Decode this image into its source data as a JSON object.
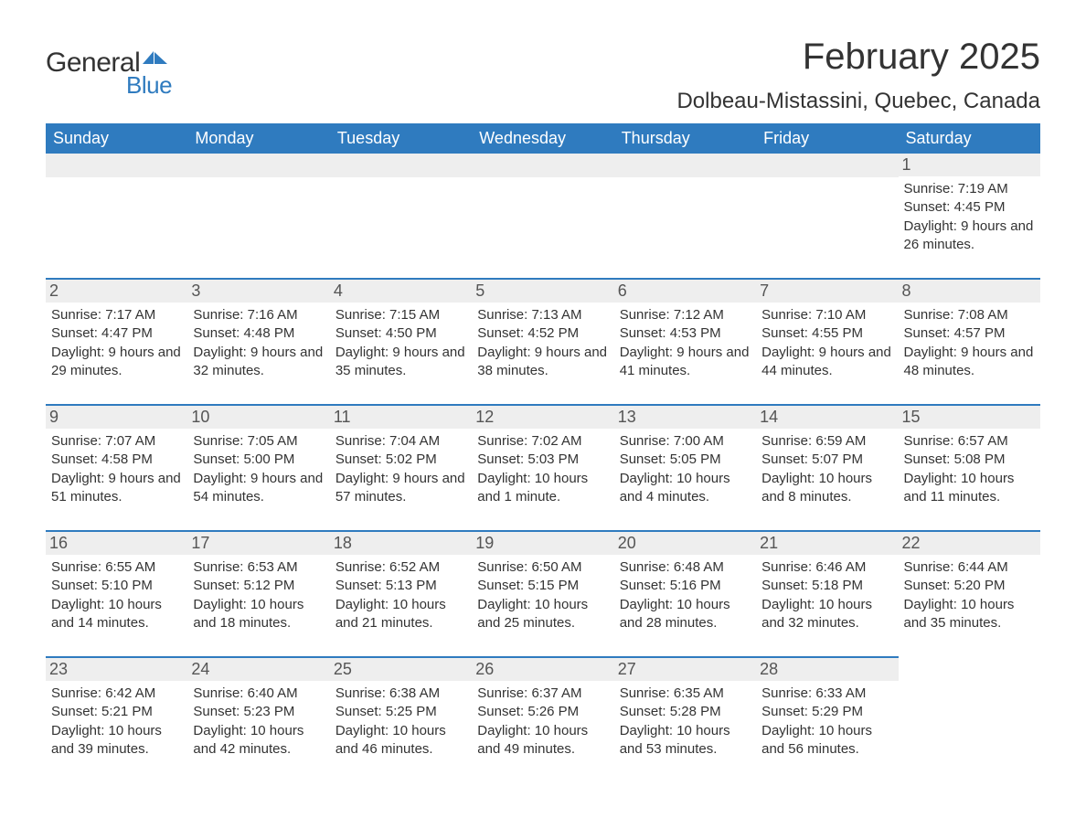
{
  "logo": {
    "word1": "General",
    "word2": "Blue",
    "color_general": "#333333",
    "color_blue": "#2f7bbf"
  },
  "title": "February 2025",
  "location": "Dolbeau-Mistassini, Quebec, Canada",
  "colors": {
    "header_bg": "#2f7bbf",
    "header_text": "#ffffff",
    "daynum_bg": "#eeeeee",
    "row_separator": "#2f7bbf",
    "body_text": "#333333",
    "background": "#ffffff"
  },
  "typography": {
    "title_fontsize": 40,
    "location_fontsize": 24,
    "weekday_fontsize": 18,
    "daynum_fontsize": 18,
    "body_fontsize": 15,
    "font_family": "Arial"
  },
  "weekdays": [
    "Sunday",
    "Monday",
    "Tuesday",
    "Wednesday",
    "Thursday",
    "Friday",
    "Saturday"
  ],
  "labels": {
    "sunrise": "Sunrise:",
    "sunset": "Sunset:",
    "daylight": "Daylight:"
  },
  "grid": [
    [
      {
        "blank": true
      },
      {
        "blank": true
      },
      {
        "blank": true
      },
      {
        "blank": true
      },
      {
        "blank": true
      },
      {
        "blank": true
      },
      {
        "day": 1,
        "sunrise": "7:19 AM",
        "sunset": "4:45 PM",
        "daylight": "9 hours and 26 minutes."
      }
    ],
    [
      {
        "day": 2,
        "sunrise": "7:17 AM",
        "sunset": "4:47 PM",
        "daylight": "9 hours and 29 minutes."
      },
      {
        "day": 3,
        "sunrise": "7:16 AM",
        "sunset": "4:48 PM",
        "daylight": "9 hours and 32 minutes."
      },
      {
        "day": 4,
        "sunrise": "7:15 AM",
        "sunset": "4:50 PM",
        "daylight": "9 hours and 35 minutes."
      },
      {
        "day": 5,
        "sunrise": "7:13 AM",
        "sunset": "4:52 PM",
        "daylight": "9 hours and 38 minutes."
      },
      {
        "day": 6,
        "sunrise": "7:12 AM",
        "sunset": "4:53 PM",
        "daylight": "9 hours and 41 minutes."
      },
      {
        "day": 7,
        "sunrise": "7:10 AM",
        "sunset": "4:55 PM",
        "daylight": "9 hours and 44 minutes."
      },
      {
        "day": 8,
        "sunrise": "7:08 AM",
        "sunset": "4:57 PM",
        "daylight": "9 hours and 48 minutes."
      }
    ],
    [
      {
        "day": 9,
        "sunrise": "7:07 AM",
        "sunset": "4:58 PM",
        "daylight": "9 hours and 51 minutes."
      },
      {
        "day": 10,
        "sunrise": "7:05 AM",
        "sunset": "5:00 PM",
        "daylight": "9 hours and 54 minutes."
      },
      {
        "day": 11,
        "sunrise": "7:04 AM",
        "sunset": "5:02 PM",
        "daylight": "9 hours and 57 minutes."
      },
      {
        "day": 12,
        "sunrise": "7:02 AM",
        "sunset": "5:03 PM",
        "daylight": "10 hours and 1 minute."
      },
      {
        "day": 13,
        "sunrise": "7:00 AM",
        "sunset": "5:05 PM",
        "daylight": "10 hours and 4 minutes."
      },
      {
        "day": 14,
        "sunrise": "6:59 AM",
        "sunset": "5:07 PM",
        "daylight": "10 hours and 8 minutes."
      },
      {
        "day": 15,
        "sunrise": "6:57 AM",
        "sunset": "5:08 PM",
        "daylight": "10 hours and 11 minutes."
      }
    ],
    [
      {
        "day": 16,
        "sunrise": "6:55 AM",
        "sunset": "5:10 PM",
        "daylight": "10 hours and 14 minutes."
      },
      {
        "day": 17,
        "sunrise": "6:53 AM",
        "sunset": "5:12 PM",
        "daylight": "10 hours and 18 minutes."
      },
      {
        "day": 18,
        "sunrise": "6:52 AM",
        "sunset": "5:13 PM",
        "daylight": "10 hours and 21 minutes."
      },
      {
        "day": 19,
        "sunrise": "6:50 AM",
        "sunset": "5:15 PM",
        "daylight": "10 hours and 25 minutes."
      },
      {
        "day": 20,
        "sunrise": "6:48 AM",
        "sunset": "5:16 PM",
        "daylight": "10 hours and 28 minutes."
      },
      {
        "day": 21,
        "sunrise": "6:46 AM",
        "sunset": "5:18 PM",
        "daylight": "10 hours and 32 minutes."
      },
      {
        "day": 22,
        "sunrise": "6:44 AM",
        "sunset": "5:20 PM",
        "daylight": "10 hours and 35 minutes."
      }
    ],
    [
      {
        "day": 23,
        "sunrise": "6:42 AM",
        "sunset": "5:21 PM",
        "daylight": "10 hours and 39 minutes."
      },
      {
        "day": 24,
        "sunrise": "6:40 AM",
        "sunset": "5:23 PM",
        "daylight": "10 hours and 42 minutes."
      },
      {
        "day": 25,
        "sunrise": "6:38 AM",
        "sunset": "5:25 PM",
        "daylight": "10 hours and 46 minutes."
      },
      {
        "day": 26,
        "sunrise": "6:37 AM",
        "sunset": "5:26 PM",
        "daylight": "10 hours and 49 minutes."
      },
      {
        "day": 27,
        "sunrise": "6:35 AM",
        "sunset": "5:28 PM",
        "daylight": "10 hours and 53 minutes."
      },
      {
        "day": 28,
        "sunrise": "6:33 AM",
        "sunset": "5:29 PM",
        "daylight": "10 hours and 56 minutes."
      },
      {
        "blank": true,
        "no_bar": true
      }
    ]
  ]
}
